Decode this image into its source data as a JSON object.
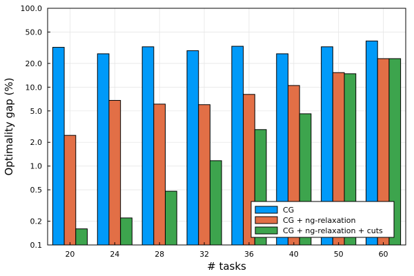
{
  "chart_data": {
    "type": "bar",
    "xlabel": "# tasks",
    "ylabel": "Optimality gap (%)",
    "yscale": "log10",
    "ylim": [
      0.1,
      100.0
    ],
    "yticks": [
      0.1,
      0.2,
      0.5,
      1.0,
      2.0,
      5.0,
      10.0,
      20.0,
      50.0,
      100.0
    ],
    "ytick_labels": [
      "0.1",
      "0.2",
      "0.5",
      "1.0",
      "2.0",
      "5.0",
      "10.0",
      "20.0",
      "50.0",
      "100.0"
    ],
    "categories": [
      "20",
      "24",
      "28",
      "32",
      "36",
      "40",
      "50",
      "60"
    ],
    "series": [
      {
        "name": "CG",
        "color": "#009af9",
        "values": [
          32,
          26.5,
          32.5,
          29,
          33,
          26.5,
          32.5,
          38.5
        ]
      },
      {
        "name": "CG + ng-relaxation",
        "color": "#e26f46",
        "values": [
          2.45,
          6.8,
          6.1,
          6.0,
          8.1,
          10.5,
          15.3,
          23.0
        ]
      },
      {
        "name": "CG + ng-relaxation + cuts",
        "color": "#3da44d",
        "values": [
          0.16,
          0.22,
          0.48,
          1.17,
          2.9,
          4.6,
          14.8,
          23.0
        ]
      }
    ],
    "grid": true,
    "legend_position": "bottom-right"
  }
}
